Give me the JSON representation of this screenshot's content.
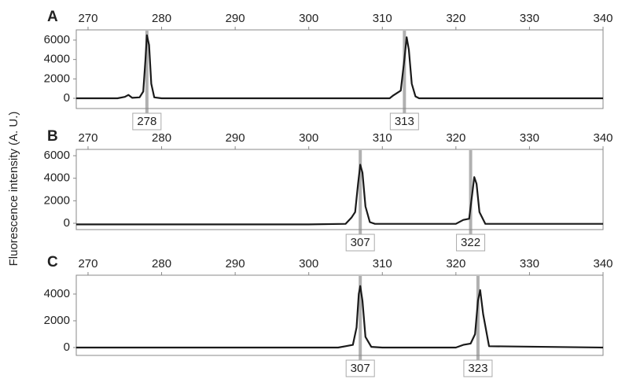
{
  "ylabel": "Fluorescence intensity (A. U.)",
  "chart_data": [
    {
      "type": "line",
      "panel": "A",
      "xlim": [
        268.4,
        340
      ],
      "xticks": [
        270,
        280,
        290,
        300,
        310,
        320,
        330,
        340
      ],
      "ylim": [
        -1050,
        7050
      ],
      "yticks": [
        0,
        2000,
        4000,
        6000
      ],
      "color": "#1a1a1a",
      "marker_color": "#b0b0b0",
      "x": [
        268.4,
        274,
        275,
        275.5,
        276,
        277,
        277.5,
        277.8,
        278,
        278.3,
        278.6,
        279,
        280,
        300,
        311,
        311.5,
        312.5,
        313,
        313.3,
        313.6,
        314,
        314.5,
        315,
        340
      ],
      "values": [
        0,
        0,
        150,
        350,
        50,
        100,
        700,
        4000,
        6500,
        5500,
        1500,
        100,
        0,
        0,
        0,
        300,
        800,
        4000,
        6300,
        5000,
        1500,
        200,
        0,
        0
      ],
      "peaks": [
        278,
        313
      ]
    },
    {
      "type": "line",
      "panel": "B",
      "xlim": [
        268.4,
        340
      ],
      "xticks": [
        270,
        280,
        290,
        300,
        310,
        320,
        330,
        340
      ],
      "ylim": [
        -560,
        6560
      ],
      "yticks": [
        0,
        2000,
        4000,
        6000
      ],
      "color": "#1a1a1a",
      "marker_color": "#b0b0b0",
      "x": [
        268.4,
        300,
        305,
        305.8,
        306.3,
        306.7,
        307,
        307.3,
        307.7,
        308.3,
        309,
        320,
        321,
        321.8,
        322.2,
        322.5,
        322.8,
        323.2,
        324,
        340
      ],
      "values": [
        -100,
        -100,
        -50,
        500,
        1000,
        3500,
        5200,
        4500,
        1500,
        100,
        -50,
        -50,
        300,
        400,
        2500,
        4100,
        3500,
        1000,
        -50,
        -50
      ],
      "peaks": [
        307,
        322
      ]
    },
    {
      "type": "line",
      "panel": "C",
      "xlim": [
        268.4,
        340
      ],
      "xticks": [
        270,
        280,
        290,
        300,
        310,
        320,
        330,
        340
      ],
      "ylim": [
        -590,
        5410
      ],
      "yticks": [
        0,
        2000,
        4000
      ],
      "color": "#1a1a1a",
      "marker_color": "#b0b0b0",
      "x": [
        268.4,
        304,
        305,
        306,
        306.5,
        306.8,
        307,
        307.3,
        307.7,
        308.5,
        310,
        320,
        321,
        322,
        322.6,
        323,
        323.3,
        323.7,
        324.5,
        340
      ],
      "values": [
        0,
        0,
        100,
        200,
        1500,
        4000,
        4600,
        3500,
        800,
        50,
        0,
        0,
        200,
        300,
        1000,
        3500,
        4300,
        2500,
        100,
        0
      ],
      "peaks": [
        307,
        323
      ]
    }
  ]
}
